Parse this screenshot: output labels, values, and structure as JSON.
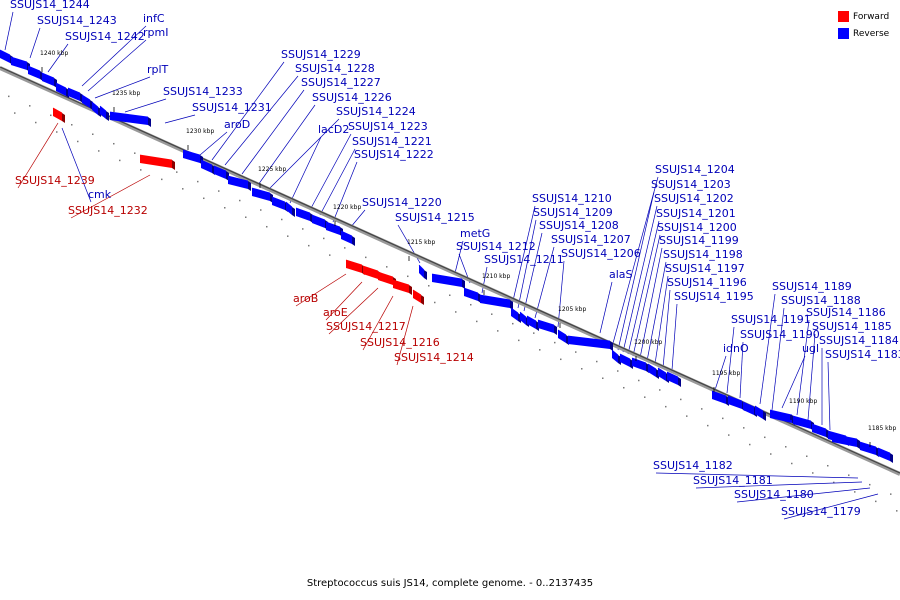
{
  "caption": "Streptococcus suis JS14, complete genome. - 0..2137435",
  "legend": [
    {
      "label": "Forward",
      "color": "#ff0000"
    },
    {
      "label": "Reverse",
      "color": "#0000ff"
    }
  ],
  "ticks": [
    "1240 kbp",
    "1235 kbp",
    "1230 kbp",
    "1225 kbp",
    "1220 kbp",
    "1215 kbp",
    "1210 kbp",
    "1205 kbp",
    "1200 kbp",
    "1195 kbp",
    "1190 kbp",
    "1185 kbp"
  ],
  "genes": [
    {
      "name": "SSUJS14_1244",
      "strand": "reverse"
    },
    {
      "name": "SSUJS14_1243",
      "strand": "reverse"
    },
    {
      "name": "SSUJS14_1242",
      "strand": "reverse"
    },
    {
      "name": "infC",
      "strand": "reverse"
    },
    {
      "name": "rpmI",
      "strand": "reverse"
    },
    {
      "name": "rplT",
      "strand": "reverse"
    },
    {
      "name": "SSUJS14_1233",
      "strand": "reverse"
    },
    {
      "name": "SSUJS14_1231",
      "strand": "reverse"
    },
    {
      "name": "aroD",
      "strand": "reverse"
    },
    {
      "name": "SSUJS14_1229",
      "strand": "reverse"
    },
    {
      "name": "SSUJS14_1228",
      "strand": "reverse"
    },
    {
      "name": "SSUJS14_1227",
      "strand": "reverse"
    },
    {
      "name": "SSUJS14_1226",
      "strand": "reverse"
    },
    {
      "name": "SSUJS14_1224",
      "strand": "reverse"
    },
    {
      "name": "lacD2",
      "strand": "reverse"
    },
    {
      "name": "SSUJS14_1223",
      "strand": "reverse"
    },
    {
      "name": "SSUJS14_1221",
      "strand": "reverse"
    },
    {
      "name": "SSUJS14_1222",
      "strand": "reverse"
    },
    {
      "name": "SSUJS14_1220",
      "strand": "reverse"
    },
    {
      "name": "SSUJS14_1215",
      "strand": "reverse"
    },
    {
      "name": "metG",
      "strand": "reverse"
    },
    {
      "name": "SSUJS14_1212",
      "strand": "reverse"
    },
    {
      "name": "SSUJS14_1211",
      "strand": "reverse"
    },
    {
      "name": "SSUJS14_1210",
      "strand": "reverse"
    },
    {
      "name": "SSUJS14_1209",
      "strand": "reverse"
    },
    {
      "name": "SSUJS14_1208",
      "strand": "reverse"
    },
    {
      "name": "SSUJS14_1207",
      "strand": "reverse"
    },
    {
      "name": "SSUJS14_1206",
      "strand": "reverse"
    },
    {
      "name": "alaS",
      "strand": "reverse"
    },
    {
      "name": "SSUJS14_1204",
      "strand": "reverse"
    },
    {
      "name": "SSUJS14_1203",
      "strand": "reverse"
    },
    {
      "name": "SSUJS14_1202",
      "strand": "reverse"
    },
    {
      "name": "SSUJS14_1201",
      "strand": "reverse"
    },
    {
      "name": "SSUJS14_1200",
      "strand": "reverse"
    },
    {
      "name": "SSUJS14_1199",
      "strand": "reverse"
    },
    {
      "name": "SSUJS14_1198",
      "strand": "reverse"
    },
    {
      "name": "SSUJS14_1197",
      "strand": "reverse"
    },
    {
      "name": "SSUJS14_1196",
      "strand": "reverse"
    },
    {
      "name": "SSUJS14_1195",
      "strand": "reverse"
    },
    {
      "name": "SSUJS14_1191",
      "strand": "reverse"
    },
    {
      "name": "SSUJS14_1190",
      "strand": "reverse"
    },
    {
      "name": "idnO",
      "strand": "reverse"
    },
    {
      "name": "ugl",
      "strand": "reverse"
    },
    {
      "name": "SSUJS14_1189",
      "strand": "reverse"
    },
    {
      "name": "SSUJS14_1188",
      "strand": "reverse"
    },
    {
      "name": "SSUJS14_1186",
      "strand": "reverse"
    },
    {
      "name": "SSUJS14_1185",
      "strand": "reverse"
    },
    {
      "name": "SSUJS14_1184",
      "strand": "reverse"
    },
    {
      "name": "SSUJS14_1183",
      "strand": "reverse"
    },
    {
      "name": "SSUJS14_1239",
      "strand": "forward"
    },
    {
      "name": "cmk",
      "strand": "reverse"
    },
    {
      "name": "SSUJS14_1232",
      "strand": "forward"
    },
    {
      "name": "aroB",
      "strand": "forward"
    },
    {
      "name": "aroE",
      "strand": "forward"
    },
    {
      "name": "SSUJS14_1217",
      "strand": "forward"
    },
    {
      "name": "SSUJS14_1216",
      "strand": "forward"
    },
    {
      "name": "SSUJS14_1214",
      "strand": "forward"
    },
    {
      "name": "SSUJS14_1182",
      "strand": "reverse"
    },
    {
      "name": "SSUJS14_1181",
      "strand": "reverse"
    },
    {
      "name": "SSUJS14_1180",
      "strand": "reverse"
    },
    {
      "name": "SSUJS14_1179",
      "strand": "reverse"
    }
  ]
}
